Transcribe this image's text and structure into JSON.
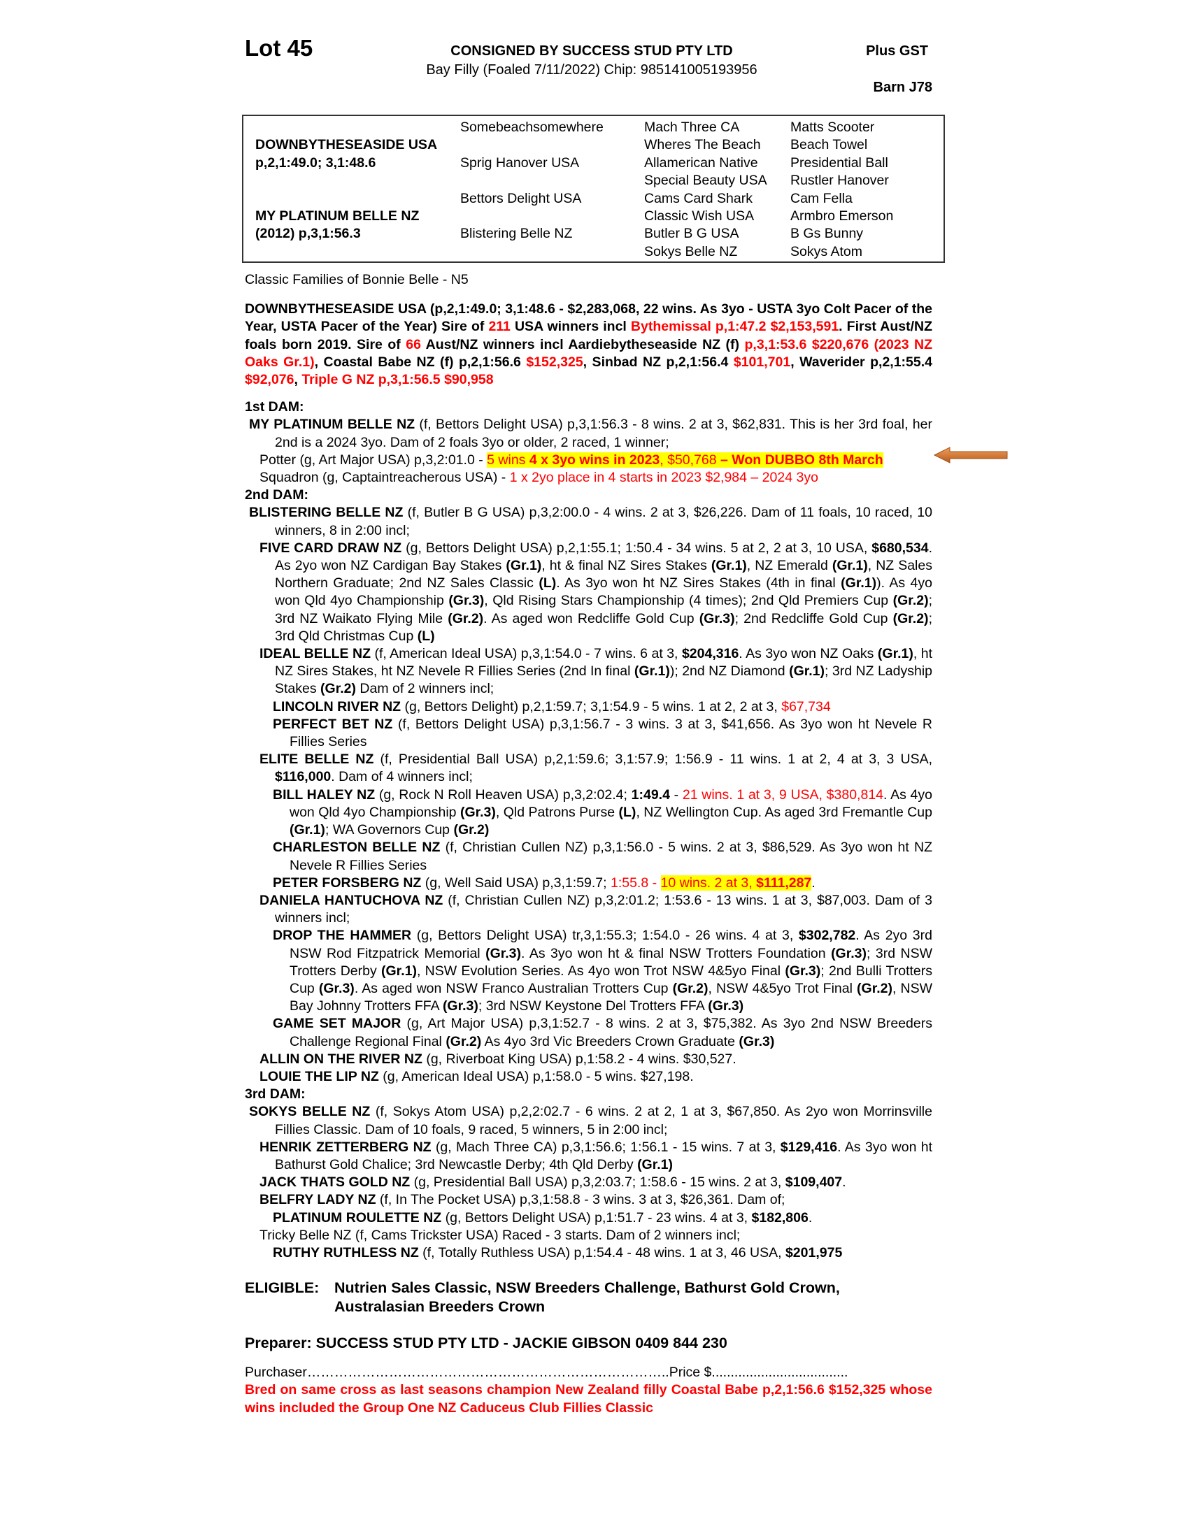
{
  "header": {
    "lot": "Lot 45",
    "consignor": "CONSIGNED BY SUCCESS STUD PTY LTD",
    "description": "Bay Filly (Foaled 7/11/2022) Chip: 985141005193956",
    "gst": "Plus GST",
    "barn": "Barn J78"
  },
  "pedigree": {
    "rows": [
      [
        "",
        "Somebeachsomewhere",
        "Mach Three CA",
        "Matts Scooter"
      ],
      [
        "DOWNBYTHESEASIDE USA",
        "",
        "Wheres The Beach",
        "Beach Towel"
      ],
      [
        "p,2,1:49.0; 3,1:48.6",
        "Sprig Hanover USA",
        "Allamerican Native",
        "Presidential Ball"
      ],
      [
        "",
        "",
        "Special Beauty USA",
        "Rustler Hanover"
      ],
      [
        "",
        "Bettors Delight USA",
        "Cams Card Shark",
        "Cam Fella"
      ],
      [
        "MY PLATINUM BELLE NZ",
        "",
        "Classic Wish USA",
        "Armbro Emerson"
      ],
      [
        "(2012) p,3,1:56.3",
        "Blistering Belle NZ",
        "Butler B G USA",
        "B Gs Bunny"
      ],
      [
        "",
        "",
        "Sokys Belle NZ",
        "Sokys Atom"
      ]
    ]
  },
  "family": "Classic Families of Bonnie Belle - N5",
  "sire": [
    [
      "DOWNBYTHESEASIDE USA (p,2,1:49.0; 3,1:48.6 - $2,283,068, 22 wins. As 3yo - USTA 3yo Colt Pacer of the Year, USTA Pacer of the Year) Sire of ",
      "b"
    ],
    [
      "211",
      "rb"
    ],
    [
      " USA winners incl ",
      "b"
    ],
    [
      "Bythemissal p,1:47.2 $2,153,591",
      "rb"
    ],
    [
      ". First Aust/NZ foals born 2019. Sire of ",
      "b"
    ],
    [
      "66",
      "rb"
    ],
    [
      " Aust/NZ winners incl Aardiebytheseaside NZ (f) ",
      "b"
    ],
    [
      "p,3,1:53.6 $220,676 (2023 NZ Oaks Gr.1)",
      "rb"
    ],
    [
      ", Coastal Babe NZ (f) p,2,1:56.6 ",
      "b"
    ],
    [
      "$152,325",
      "rb"
    ],
    [
      ", Sinbad NZ p,2,1:56.4 ",
      "b"
    ],
    [
      "$101,701",
      "rb"
    ],
    [
      ", Waverider p,2,1:55.4 ",
      "b"
    ],
    [
      "$92,076",
      "rb"
    ],
    [
      ", ",
      "b"
    ],
    [
      "Triple G NZ p,3,1:56.5 $90,958",
      "rb"
    ]
  ],
  "entries": [
    {
      "lvl": "h",
      "parts": [
        [
          "1st DAM:",
          ""
        ]
      ]
    },
    {
      "lvl": "d",
      "parts": [
        [
          "MY PLATINUM BELLE NZ",
          "b"
        ],
        [
          " (f, Bettors Delight USA) p,3,1:56.3 - 8 wins. 2 at 3, $62,831. This is her 3rd foal, her 2nd is a 2024 3yo. Dam of 2 foals 3yo or older, 2 raced, 1 winner;",
          ""
        ]
      ]
    },
    {
      "lvl": "p1",
      "parts": [
        [
          "Potter (g, Art Major USA) p,3,2:01.0 - ",
          ""
        ],
        [
          "5 wins ",
          "h"
        ],
        [
          "4 x 3yo wins in 2023",
          "hb"
        ],
        [
          ", $50,768 ",
          "h"
        ],
        [
          "– Won DUBBO 8th March",
          "hb"
        ]
      ]
    },
    {
      "lvl": "p1",
      "parts": [
        [
          "Squadron (g, Captaintreacherous USA) - ",
          ""
        ],
        [
          "1 x 2yo place in 4 starts in 2023 $2,984 – 2024 3yo",
          "r"
        ]
      ]
    },
    {
      "lvl": "h",
      "parts": [
        [
          "2nd DAM:",
          ""
        ]
      ]
    },
    {
      "lvl": "d",
      "parts": [
        [
          "BLISTERING BELLE NZ",
          "b"
        ],
        [
          " (f, Butler B G USA) p,3,2:00.0 - 4 wins. 2 at 3, $26,226. Dam of 11 foals, 10 raced, 10 winners, 8 in 2:00 incl;",
          ""
        ]
      ]
    },
    {
      "lvl": "p1",
      "parts": [
        [
          "FIVE CARD DRAW NZ",
          "b"
        ],
        [
          " (g, Bettors Delight USA) p,2,1:55.1; 1:50.4 - 34 wins. 5 at 2, 2 at 3, 10 USA, ",
          ""
        ],
        [
          "$680,534",
          "b"
        ],
        [
          ". As 2yo won NZ Cardigan Bay Stakes ",
          ""
        ],
        [
          "(Gr.1)",
          "b"
        ],
        [
          ", ht & final NZ Sires Stakes ",
          ""
        ],
        [
          "(Gr.1)",
          "b"
        ],
        [
          ", NZ Emerald ",
          ""
        ],
        [
          "(Gr.1)",
          "b"
        ],
        [
          ", NZ Sales Northern Graduate; 2nd NZ Sales Classic ",
          ""
        ],
        [
          "(L)",
          "b"
        ],
        [
          ". As 3yo won ht NZ Sires Stakes (4th in final ",
          ""
        ],
        [
          "(Gr.1)",
          "b"
        ],
        [
          "). As 4yo won Qld 4yo Championship ",
          ""
        ],
        [
          "(Gr.3)",
          "b"
        ],
        [
          ", Qld Rising Stars Championship (4 times); 2nd Qld Premiers Cup ",
          ""
        ],
        [
          "(Gr.2)",
          "b"
        ],
        [
          "; 3rd NZ Waikato Flying Mile ",
          ""
        ],
        [
          "(Gr.2)",
          "b"
        ],
        [
          ". As aged won Redcliffe Gold Cup ",
          ""
        ],
        [
          "(Gr.3)",
          "b"
        ],
        [
          "; 2nd Redcliffe Gold Cup ",
          ""
        ],
        [
          "(Gr.2)",
          "b"
        ],
        [
          "; 3rd Qld Christmas Cup ",
          ""
        ],
        [
          "(L)",
          "b"
        ]
      ]
    },
    {
      "lvl": "p1",
      "parts": [
        [
          "IDEAL BELLE NZ",
          "b"
        ],
        [
          " (f, American Ideal USA) p,3,1:54.0 - 7 wins. 6 at 3, ",
          ""
        ],
        [
          "$204,316",
          "b"
        ],
        [
          ". As 3yo won NZ Oaks ",
          ""
        ],
        [
          "(Gr.1)",
          "b"
        ],
        [
          ", ht NZ Sires Stakes, ht NZ Nevele R Fillies Series (2nd In final ",
          ""
        ],
        [
          "(Gr.1)",
          "b"
        ],
        [
          "); 2nd NZ Diamond ",
          ""
        ],
        [
          "(Gr.1)",
          "b"
        ],
        [
          "; 3rd NZ Ladyship Stakes ",
          ""
        ],
        [
          "(Gr.2)",
          "b"
        ],
        [
          " Dam of 2 winners incl;",
          ""
        ]
      ]
    },
    {
      "lvl": "p2",
      "parts": [
        [
          "LINCOLN RIVER NZ",
          "b"
        ],
        [
          " (g, Bettors Delight) p,2,1:59.7; 3,1:54.9 - 5 wins. 1 at 2, 2 at 3, ",
          ""
        ],
        [
          "$67,734",
          "r"
        ]
      ]
    },
    {
      "lvl": "p2",
      "parts": [
        [
          "PERFECT BET NZ",
          "b"
        ],
        [
          " (f, Bettors Delight USA) p,3,1:56.7 - 3 wins. 3 at 3, $41,656. As 3yo won ht Nevele R Fillies Series",
          ""
        ]
      ]
    },
    {
      "lvl": "p1",
      "parts": [
        [
          "ELITE BELLE NZ",
          "b"
        ],
        [
          " (f, Presidential Ball USA) p,2,1:59.6; 3,1:57.9; 1:56.9 - 11 wins. 1 at 2, 4 at 3, 3 USA, ",
          ""
        ],
        [
          "$116,000",
          "b"
        ],
        [
          ". Dam of 4 winners incl;",
          ""
        ]
      ]
    },
    {
      "lvl": "p2",
      "parts": [
        [
          "BILL HALEY NZ",
          "b"
        ],
        [
          " (g, Rock N Roll Heaven USA) p,3,2:02.4; ",
          ""
        ],
        [
          "1:49.4",
          "b"
        ],
        [
          " - ",
          ""
        ],
        [
          "21 wins. 1 at 3, 9 USA, $380,814",
          "r"
        ],
        [
          ". As 4yo won Qld 4yo Championship ",
          ""
        ],
        [
          "(Gr.3)",
          "b"
        ],
        [
          ", Qld Patrons Purse ",
          ""
        ],
        [
          "(L)",
          "b"
        ],
        [
          ", NZ Wellington Cup. As aged 3rd Fremantle Cup ",
          ""
        ],
        [
          "(Gr.1)",
          "b"
        ],
        [
          "; WA Governors Cup ",
          ""
        ],
        [
          "(Gr.2)",
          "b"
        ]
      ]
    },
    {
      "lvl": "p2",
      "parts": [
        [
          "CHARLESTON BELLE NZ",
          "b"
        ],
        [
          " (f, Christian Cullen NZ) p,3,1:56.0 - 5 wins. 2 at 3, $86,529. As 3yo won ht NZ Nevele R Fillies Series",
          ""
        ]
      ]
    },
    {
      "lvl": "p2",
      "parts": [
        [
          "PETER FORSBERG NZ",
          "b"
        ],
        [
          " (g, Well Said USA) p,3,1:59.7; ",
          ""
        ],
        [
          "1:55.8 - ",
          "r"
        ],
        [
          "10 wins. 2 at 3, ",
          "h"
        ],
        [
          "$111,287",
          "hb"
        ],
        [
          ".",
          ""
        ]
      ]
    },
    {
      "lvl": "p1",
      "parts": [
        [
          "DANIELA HANTUCHOVA NZ",
          "b"
        ],
        [
          " (f, Christian Cullen NZ) p,3,2:01.2; 1:53.6 - 13 wins. 1 at 3, $87,003. Dam of 3 winners incl;",
          ""
        ]
      ]
    },
    {
      "lvl": "p2",
      "parts": [
        [
          "DROP THE HAMMER",
          "b"
        ],
        [
          " (g, Bettors Delight USA) tr,3,1:55.3; 1:54.0 - 26 wins. 4 at 3, ",
          ""
        ],
        [
          "$302,782",
          "b"
        ],
        [
          ". As 2yo 3rd NSW Rod Fitzpatrick Memorial ",
          ""
        ],
        [
          "(Gr.3)",
          "b"
        ],
        [
          ". As 3yo won ht & final NSW Trotters Foundation ",
          ""
        ],
        [
          "(Gr.3)",
          "b"
        ],
        [
          "; 3rd NSW Trotters Derby ",
          ""
        ],
        [
          "(Gr.1)",
          "b"
        ],
        [
          ", NSW Evolution Series. As 4yo won Trot NSW 4&5yo Final ",
          ""
        ],
        [
          "(Gr.3)",
          "b"
        ],
        [
          "; 2nd Bulli Trotters Cup ",
          ""
        ],
        [
          "(Gr.3)",
          "b"
        ],
        [
          ". As aged won NSW Franco Australian Trotters Cup ",
          ""
        ],
        [
          "(Gr.2)",
          "b"
        ],
        [
          ", NSW 4&5yo Trot Final ",
          ""
        ],
        [
          "(Gr.2)",
          "b"
        ],
        [
          ", NSW Bay Johnny Trotters FFA ",
          ""
        ],
        [
          "(Gr.3)",
          "b"
        ],
        [
          "; 3rd NSW Keystone Del Trotters FFA ",
          ""
        ],
        [
          "(Gr.3)",
          "b"
        ]
      ]
    },
    {
      "lvl": "p2",
      "parts": [
        [
          "GAME SET MAJOR",
          "b"
        ],
        [
          " (g, Art Major USA) p,3,1:52.7 - 8 wins. 2 at 3, $75,382. As 3yo 2nd NSW Breeders Challenge Regional Final ",
          ""
        ],
        [
          "(Gr.2)",
          "b"
        ],
        [
          " As 4yo 3rd Vic Breeders Crown Graduate ",
          ""
        ],
        [
          "(Gr.3)",
          "b"
        ]
      ]
    },
    {
      "lvl": "p1",
      "parts": [
        [
          "ALLIN ON THE RIVER NZ",
          "b"
        ],
        [
          " (g, Riverboat King USA) p,1:58.2 - 4 wins. $30,527.",
          ""
        ]
      ]
    },
    {
      "lvl": "p1",
      "parts": [
        [
          "LOUIE THE LIP NZ",
          "b"
        ],
        [
          " (g, American Ideal USA) p,1:58.0 - 5 wins. $27,198.",
          ""
        ]
      ]
    },
    {
      "lvl": "h",
      "parts": [
        [
          "3rd DAM:",
          ""
        ]
      ]
    },
    {
      "lvl": "d",
      "parts": [
        [
          "SOKYS BELLE NZ",
          "b"
        ],
        [
          " (f, Sokys Atom USA) p,2,2:02.7 - 6 wins. 2 at 2, 1 at 3, $67,850. As 2yo won Morrinsville Fillies Classic. Dam of 10 foals, 9 raced, 5 winners, 5 in 2:00 incl;",
          ""
        ]
      ]
    },
    {
      "lvl": "p1",
      "parts": [
        [
          "HENRIK ZETTERBERG NZ",
          "b"
        ],
        [
          " (g, Mach Three CA) p,3,1:56.6; 1:56.1 - 15 wins. 7 at 3, ",
          ""
        ],
        [
          "$129,416",
          "b"
        ],
        [
          ". As 3yo won ht Bathurst Gold Chalice; 3rd Newcastle Derby; 4th Qld Derby ",
          ""
        ],
        [
          "(Gr.1)",
          "b"
        ]
      ]
    },
    {
      "lvl": "p1",
      "parts": [
        [
          "JACK THATS GOLD NZ",
          "b"
        ],
        [
          " (g, Presidential Ball USA) p,3,2:03.7; 1:58.6 - 15 wins. 2 at 3, ",
          ""
        ],
        [
          "$109,407",
          "b"
        ],
        [
          ".",
          ""
        ]
      ]
    },
    {
      "lvl": "p1",
      "parts": [
        [
          "BELFRY LADY NZ",
          "b"
        ],
        [
          " (f, In The Pocket USA) p,3,1:58.8 - 3 wins. 3 at 3, $26,361. Dam of;",
          ""
        ]
      ]
    },
    {
      "lvl": "p2",
      "parts": [
        [
          "PLATINUM ROULETTE NZ",
          "b"
        ],
        [
          " (g, Bettors Delight USA) p,1:51.7 - 23 wins. 4 at 3, ",
          ""
        ],
        [
          "$182,806",
          "b"
        ],
        [
          ".",
          ""
        ]
      ]
    },
    {
      "lvl": "p1",
      "parts": [
        [
          "Tricky Belle NZ (f, Cams Trickster USA) Raced - 3 starts. Dam of 2 winners incl;",
          ""
        ]
      ]
    },
    {
      "lvl": "p2",
      "parts": [
        [
          "RUTHY RUTHLESS NZ",
          "b"
        ],
        [
          " (f, Totally Ruthless USA) p,1:54.4 - 48 wins. 1 at 3, 46 USA, ",
          ""
        ],
        [
          "$201,975",
          "b"
        ]
      ]
    }
  ],
  "eligible": {
    "label": "ELIGIBLE:",
    "line1": "Nutrien Sales Classic, NSW Breeders Challenge, Bathurst Gold Crown,",
    "line2": "Australasian Breeders Crown"
  },
  "preparer": "Preparer: SUCCESS STUD PTY LTD - JACKIE GIBSON 0409 844 230",
  "purchaser": "Purchaser……………………………………………………………………..Price $....................................",
  "note": "Bred on same cross as last seasons champion New Zealand filly Coastal Babe p,2,1:56.6 $152,325 whose wins included the Group One NZ Caduceus Club Fillies Classic",
  "colors": {
    "red": "#ff0000",
    "highlight": "#ffff00",
    "arrow": "#d9772b"
  },
  "icons": {
    "annotation": "arrow-left-icon"
  }
}
